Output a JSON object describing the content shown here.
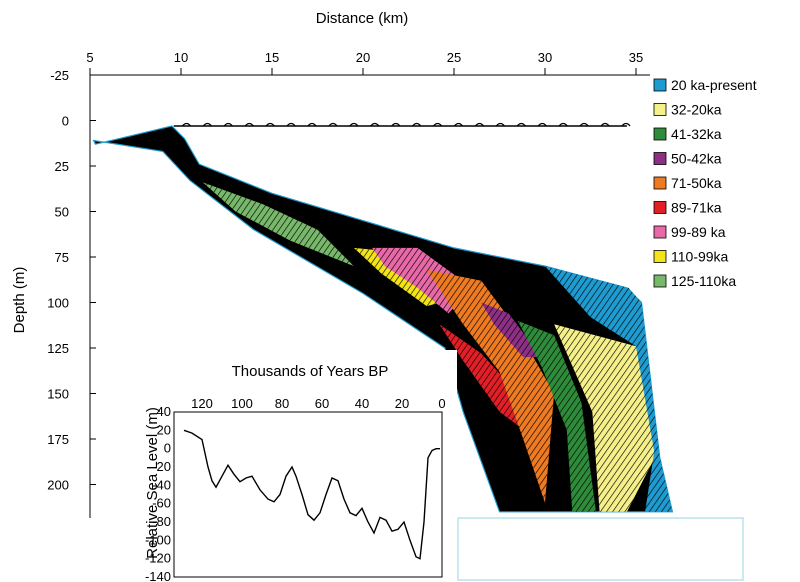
{
  "chart_data": [
    {
      "type": "area",
      "xlabel": "Distance (km)",
      "ylabel": "Depth (m)",
      "xlim": [
        5,
        36
      ],
      "ylim": [
        -25,
        215
      ],
      "y_inverted": true,
      "x_ticks": [
        5,
        10,
        15,
        20,
        25,
        30,
        35
      ],
      "y_ticks": [
        -25,
        0,
        25,
        50,
        75,
        100,
        125,
        150,
        175,
        200
      ],
      "legend": {
        "placement": "right",
        "entries": [
          {
            "label": "20 ka-present",
            "color": "#1e9bd0"
          },
          {
            "label": "32-20ka",
            "color": "#f5f08a"
          },
          {
            "label": "41-32ka",
            "color": "#2e8b3a"
          },
          {
            "label": "50-42ka",
            "color": "#8e2f86"
          },
          {
            "label": "71-50ka",
            "color": "#ee7a22"
          },
          {
            "label": "89-71ka",
            "color": "#e21f26"
          },
          {
            "label": "99-89 ka",
            "color": "#e868a8"
          },
          {
            "label": "110-99ka",
            "color": "#f2e418"
          },
          {
            "label": "125-110ka",
            "color": "#78b86a"
          }
        ]
      },
      "envelope": {
        "top": [
          {
            "x": 5.3,
            "y": 13
          },
          {
            "x": 9.5,
            "y": 3
          },
          {
            "x": 10.2,
            "y": 10
          },
          {
            "x": 11,
            "y": 24
          },
          {
            "x": 15,
            "y": 40
          },
          {
            "x": 20,
            "y": 55
          },
          {
            "x": 25,
            "y": 70
          },
          {
            "x": 30,
            "y": 80
          },
          {
            "x": 34.5,
            "y": 92
          },
          {
            "x": 35.3,
            "y": 100
          },
          {
            "x": 36.3,
            "y": 185
          },
          {
            "x": 37,
            "y": 215
          }
        ],
        "bottom": [
          {
            "x": 27.5,
            "y": 215
          },
          {
            "x": 25.5,
            "y": 160
          },
          {
            "x": 24.5,
            "y": 125
          },
          {
            "x": 20,
            "y": 95
          },
          {
            "x": 14,
            "y": 60
          },
          {
            "x": 10.5,
            "y": 33
          },
          {
            "x": 9,
            "y": 17
          },
          {
            "x": 5.2,
            "y": 11
          }
        ]
      },
      "sea_level_at_present": 3,
      "unit_polygons": [
        {
          "name": "125-110ka",
          "points": [
            [
              11.2,
              34
            ],
            [
              14.5,
              46
            ],
            [
              17.5,
              60
            ],
            [
              19.5,
              80
            ],
            [
              16,
              66
            ],
            [
              13,
              50
            ]
          ]
        },
        {
          "name": "110-99ka",
          "points": [
            [
              19.5,
              70
            ],
            [
              21.5,
              72
            ],
            [
              25,
              98
            ],
            [
              23.5,
              102
            ],
            [
              21,
              84
            ]
          ]
        },
        {
          "name": "99-89 ka",
          "points": [
            [
              20.5,
              70
            ],
            [
              23,
              70
            ],
            [
              26,
              92
            ],
            [
              24.7,
              106
            ],
            [
              23,
              92
            ],
            [
              21.2,
              80
            ]
          ]
        },
        {
          "name": "89-71ka",
          "points": [
            [
              24.2,
              112
            ],
            [
              26.5,
              128
            ],
            [
              28.5,
              150
            ],
            [
              29.5,
              175
            ],
            [
              27.5,
              160
            ],
            [
              25.5,
              132
            ]
          ]
        },
        {
          "name": "71-50ka",
          "points": [
            [
              23.5,
              82
            ],
            [
              26.5,
              88
            ],
            [
              28.5,
              115
            ],
            [
              30.5,
              150
            ],
            [
              30,
              210
            ],
            [
              28.8,
              175
            ],
            [
              27.5,
              138
            ],
            [
              25.5,
              112
            ]
          ]
        },
        {
          "name": "50-42ka",
          "points": [
            [
              26.5,
              100
            ],
            [
              28,
              106
            ],
            [
              29.8,
              130
            ],
            [
              28.8,
              130
            ],
            [
              27.2,
              112
            ]
          ]
        },
        {
          "name": "41-32ka",
          "points": [
            [
              28.5,
              110
            ],
            [
              30.5,
              118
            ],
            [
              32,
              155
            ],
            [
              32.8,
              215
            ],
            [
              31.5,
              215
            ],
            [
              31.2,
              170
            ],
            [
              29.8,
              135
            ]
          ]
        },
        {
          "name": "32-20ka",
          "points": [
            [
              30.5,
              112
            ],
            [
              35,
              124
            ],
            [
              36.2,
              182
            ],
            [
              34.5,
              215
            ],
            [
              33,
              215
            ],
            [
              32.6,
              160
            ]
          ]
        },
        {
          "name": "20 ka-present",
          "points": [
            [
              30,
              80
            ],
            [
              34.6,
              92
            ],
            [
              35.3,
              100
            ],
            [
              36.3,
              185
            ],
            [
              37,
              215
            ],
            [
              35.5,
              215
            ],
            [
              36,
              182
            ],
            [
              35,
              124
            ],
            [
              32.5,
              108
            ]
          ]
        }
      ],
      "note_box_text": ""
    },
    {
      "type": "line",
      "title": "Thousands of Years BP",
      "ylabel": "Relative Sea Level (m)",
      "xlim": [
        130,
        0
      ],
      "ylim": [
        -140,
        40
      ],
      "x_ticks": [
        120,
        100,
        80,
        60,
        40,
        20,
        0
      ],
      "y_ticks": [
        40,
        20,
        0,
        -20,
        -40,
        -60,
        -80,
        -100,
        -120,
        -140
      ],
      "series": [
        {
          "points": [
            [
              129,
              20
            ],
            [
              125,
              17
            ],
            [
              120,
              10
            ],
            [
              117,
              -20
            ],
            [
              115,
              -35
            ],
            [
              113,
              -42
            ],
            [
              110,
              -30
            ],
            [
              107,
              -18
            ],
            [
              104,
              -28
            ],
            [
              101,
              -36
            ],
            [
              98,
              -32
            ],
            [
              95,
              -30
            ],
            [
              91,
              -45
            ],
            [
              87,
              -55
            ],
            [
              84,
              -58
            ],
            [
              81,
              -50
            ],
            [
              78,
              -30
            ],
            [
              75,
              -20
            ],
            [
              73,
              -30
            ],
            [
              70,
              -50
            ],
            [
              67,
              -72
            ],
            [
              64,
              -78
            ],
            [
              61,
              -70
            ],
            [
              58,
              -50
            ],
            [
              55,
              -32
            ],
            [
              52,
              -35
            ],
            [
              49,
              -55
            ],
            [
              46,
              -70
            ],
            [
              43,
              -73
            ],
            [
              40,
              -65
            ],
            [
              37,
              -80
            ],
            [
              34,
              -92
            ],
            [
              31,
              -75
            ],
            [
              28,
              -78
            ],
            [
              25,
              -90
            ],
            [
              22,
              -88
            ],
            [
              19,
              -80
            ],
            [
              16,
              -100
            ],
            [
              13,
              -118
            ],
            [
              11,
              -120
            ],
            [
              9,
              -80
            ],
            [
              7,
              -10
            ],
            [
              5,
              -2
            ],
            [
              3,
              0
            ],
            [
              1,
              0
            ]
          ]
        }
      ]
    }
  ]
}
